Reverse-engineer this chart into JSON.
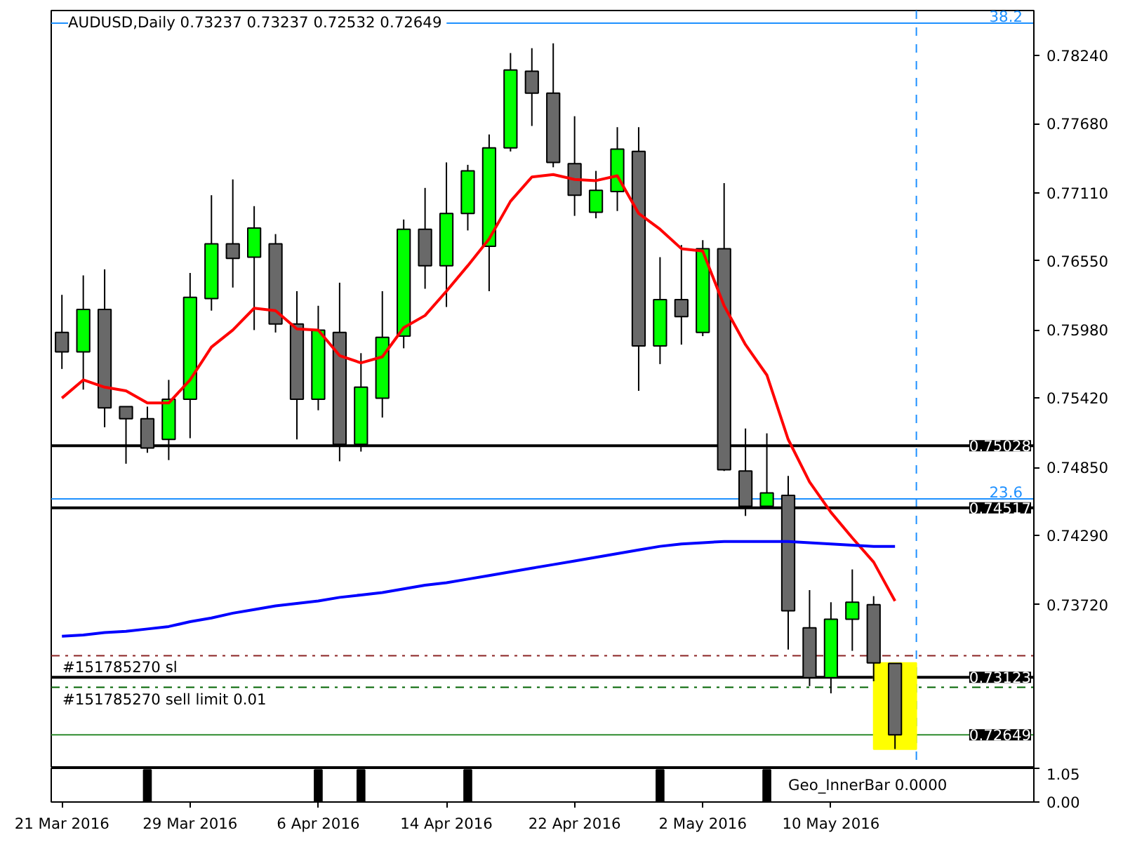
{
  "chart_data": [
    {
      "type": "candlestick",
      "title": "AUDUSD,Daily  0.73237 0.73237 0.72532 0.72649",
      "categories": [
        null,
        null,
        null,
        null,
        null,
        null,
        null,
        null,
        null,
        null,
        null,
        null,
        null,
        null,
        null,
        null,
        null,
        null,
        null,
        null,
        null,
        null,
        null,
        null,
        null,
        null,
        null,
        null,
        null,
        null,
        null,
        null,
        null,
        null,
        null,
        null,
        null,
        null,
        null,
        null,
        null,
        null,
        null,
        null,
        null,
        null
      ],
      "ohlc": [
        [
          0.7596,
          0.7627,
          0.7566,
          0.758
        ],
        [
          0.758,
          0.7643,
          0.7549,
          0.7615
        ],
        [
          0.7615,
          0.7648,
          0.7518,
          0.7534
        ],
        [
          0.7535,
          0.7535,
          0.7488,
          0.7525
        ],
        [
          0.7525,
          0.7535,
          0.7497,
          0.7501
        ],
        [
          0.7508,
          0.7557,
          0.7491,
          0.7541
        ],
        [
          0.7541,
          0.7645,
          0.7509,
          0.7625
        ],
        [
          0.7624,
          0.7709,
          0.7614,
          0.7669
        ],
        [
          0.7669,
          0.7722,
          0.7633,
          0.7657
        ],
        [
          0.7658,
          0.77,
          0.7598,
          0.7682
        ],
        [
          0.7669,
          0.7677,
          0.7596,
          0.7603
        ],
        [
          0.7603,
          0.763,
          0.7508,
          0.7541
        ],
        [
          0.7541,
          0.7618,
          0.7532,
          0.7598
        ],
        [
          0.7596,
          0.7637,
          0.749,
          0.7504
        ],
        [
          0.7504,
          0.7579,
          0.7498,
          0.7551
        ],
        [
          0.7542,
          0.763,
          0.7526,
          0.7592
        ],
        [
          0.7593,
          0.7689,
          0.7583,
          0.7681
        ],
        [
          0.7681,
          0.7715,
          0.7632,
          0.7651
        ],
        [
          0.7651,
          0.7736,
          0.7617,
          0.7694
        ],
        [
          0.7694,
          0.7734,
          0.768,
          0.7729
        ],
        [
          0.7667,
          0.7759,
          0.763,
          0.7748
        ],
        [
          0.7748,
          0.7826,
          0.7745,
          0.7812
        ],
        [
          0.7811,
          0.783,
          0.7766,
          0.7793
        ],
        [
          0.7793,
          0.7834,
          0.7732,
          0.7736
        ],
        [
          0.7735,
          0.7774,
          0.7692,
          0.7709
        ],
        [
          0.7695,
          0.7729,
          0.769,
          0.7713
        ],
        [
          0.7712,
          0.7765,
          0.7696,
          0.7747
        ],
        [
          0.7745,
          0.7765,
          0.7548,
          0.7585
        ],
        [
          0.7585,
          0.7658,
          0.757,
          0.7623
        ],
        [
          0.7623,
          0.7668,
          0.7586,
          0.7609
        ],
        [
          0.7596,
          0.7672,
          0.7593,
          0.7665
        ],
        [
          0.7665,
          0.7719,
          0.7482,
          0.7483
        ],
        [
          0.7482,
          0.7517,
          0.7445,
          0.7453
        ],
        [
          0.7453,
          0.7513,
          0.7451,
          0.7464
        ],
        [
          0.7462,
          0.7478,
          0.7335,
          0.7367
        ],
        [
          0.7353,
          0.7384,
          0.7305,
          0.7312
        ],
        [
          0.7312,
          0.7374,
          0.7299,
          0.736
        ],
        [
          0.736,
          0.7401,
          0.7334,
          0.7374
        ],
        [
          0.7372,
          0.7379,
          0.7309,
          0.7324
        ],
        [
          0.73237,
          0.73237,
          0.72532,
          0.72649
        ],
        null,
        null,
        null,
        null,
        null,
        null
      ],
      "colors": [
        "#696969",
        "#00ff00",
        "#696969",
        "#696969",
        "#696969",
        "#00ff00",
        "#00ff00",
        "#00ff00",
        "#696969",
        "#00ff00",
        "#696969",
        "#696969",
        "#00ff00",
        "#696969",
        "#00ff00",
        "#00ff00",
        "#00ff00",
        "#696969",
        "#00ff00",
        "#00ff00",
        "#00ff00",
        "#00ff00",
        "#696969",
        "#696969",
        "#696969",
        "#00ff00",
        "#00ff00",
        "#696969",
        "#00ff00",
        "#696969",
        "#00ff00",
        "#696969",
        "#696969",
        "#00ff00",
        "#696969",
        "#696969",
        "#00ff00",
        "#00ff00",
        "#696969",
        "#696969",
        null,
        null,
        null,
        null,
        null,
        null
      ],
      "series": [
        {
          "type": "bar",
          "color": "#ffff00",
          "values": [
            null,
            null,
            null,
            null,
            null,
            null,
            null,
            null,
            null,
            null,
            null,
            null,
            null,
            null,
            null,
            null,
            null,
            null,
            null,
            null,
            null,
            null,
            null,
            null,
            null,
            null,
            null,
            null,
            null,
            null,
            null,
            null,
            null,
            null,
            null,
            null,
            null,
            null,
            null,
            0.0071,
            null,
            null,
            null,
            null,
            null,
            null
          ],
          "base": [
            null,
            null,
            null,
            null,
            null,
            null,
            null,
            null,
            null,
            null,
            null,
            null,
            null,
            null,
            null,
            null,
            null,
            null,
            null,
            null,
            null,
            null,
            null,
            null,
            null,
            null,
            null,
            null,
            null,
            null,
            null,
            null,
            null,
            null,
            null,
            null,
            null,
            null,
            null,
            0.7253,
            null,
            null,
            null,
            null,
            null,
            null
          ]
        },
        {
          "type": "line",
          "color": "#ff0000",
          "values": [
            0.7542,
            0.7557,
            0.7551,
            0.7548,
            0.7538,
            0.7538,
            0.7557,
            0.7584,
            0.7598,
            0.7616,
            0.7614,
            0.7599,
            0.7598,
            0.7577,
            0.7571,
            0.7576,
            0.76,
            0.761,
            0.763,
            0.7651,
            0.7673,
            0.7704,
            0.7724,
            0.7726,
            0.7722,
            0.7721,
            0.7725,
            0.7694,
            0.7681,
            0.7665,
            0.7663,
            0.7618,
            0.7586,
            0.7561,
            0.7508,
            0.7473,
            0.7448,
            0.7427,
            0.7407,
            0.7375,
            null,
            null,
            null,
            null,
            null,
            null
          ]
        },
        {
          "type": "line",
          "color": "#0000ff",
          "values": [
            0.7346,
            0.7347,
            0.7349,
            0.735,
            0.7352,
            0.7354,
            0.7358,
            0.7361,
            0.7365,
            0.7368,
            0.7371,
            0.7373,
            0.7375,
            0.7378,
            0.738,
            0.7382,
            0.7385,
            0.7388,
            0.739,
            0.7393,
            0.7396,
            0.7399,
            0.7402,
            0.7405,
            0.7408,
            0.7411,
            0.7414,
            0.7417,
            0.742,
            0.7422,
            0.7423,
            0.7424,
            0.7424,
            0.7424,
            0.7424,
            0.7423,
            0.7422,
            0.7421,
            0.742,
            0.742,
            null,
            null,
            null,
            null,
            null,
            null
          ]
        }
      ],
      "ylim": [
        0.72373,
        0.7861
      ],
      "yticks": [
        {
          "value": 0.7824,
          "label": "0.78240"
        },
        {
          "value": 0.7768,
          "label": "0.77680"
        },
        {
          "value": 0.7711,
          "label": "0.77110"
        },
        {
          "value": 0.7655,
          "label": "0.76550"
        },
        {
          "value": 0.7598,
          "label": "0.75980"
        },
        {
          "value": 0.7542,
          "label": "0.75420"
        },
        {
          "value": 0.7485,
          "label": "0.74850"
        },
        {
          "value": 0.7429,
          "label": "0.74290"
        },
        {
          "value": 0.7372,
          "label": "0.73720"
        }
      ],
      "tick_labels": "y",
      "ref_lines": [
        {
          "axis": "y",
          "value": 0.78506,
          "color": "#1e90ff",
          "line_style": "solid"
        },
        {
          "axis": "y",
          "value": 0.75028,
          "label": "0.75028",
          "color": "#000000",
          "line_style": "solid"
        },
        {
          "axis": "y",
          "value": 0.7459,
          "color": "#1e90ff",
          "line_style": "solid"
        },
        {
          "axis": "y",
          "value": 0.74517,
          "label": "0.74517",
          "color": "#000000",
          "line_style": "solid"
        },
        {
          "axis": "y",
          "value": 0.733,
          "label": "#151785270 sl",
          "color": "#8b2323",
          "line_style": "dashdot"
        },
        {
          "axis": "y",
          "value": 0.73123,
          "label": "0.73123",
          "color": "#000000",
          "line_style": "solid"
        },
        {
          "axis": "y",
          "value": 0.7304,
          "label": "#151785270 sell limit 0.01",
          "color": "#006400",
          "line_style": "dashdot"
        },
        {
          "axis": "y",
          "value": 0.72649,
          "label": "0.72649",
          "color": "#2e8b2e",
          "line_style": "solid"
        }
      ],
      "annotations": [
        {
          "text": "38.2",
          "y": 0.78506
        },
        {
          "text": "23.6",
          "y": 0.7459
        }
      ]
    },
    {
      "type": "bar",
      "title": "Geo_InnerBar  0.0000",
      "categories": [
        "21 Mar 2016",
        null,
        null,
        null,
        null,
        null,
        "29 Mar 2016",
        null,
        null,
        null,
        null,
        null,
        "6 Apr 2016",
        null,
        null,
        null,
        null,
        null,
        "14 Apr 2016",
        null,
        null,
        null,
        null,
        null,
        "22 Apr 2016",
        null,
        null,
        null,
        null,
        null,
        "2 May 2016",
        null,
        null,
        null,
        null,
        null,
        "10 May 2016",
        null,
        null,
        null,
        null,
        null,
        null,
        null,
        null,
        null
      ],
      "values": [
        null,
        null,
        null,
        null,
        1,
        null,
        null,
        null,
        null,
        null,
        null,
        null,
        1,
        null,
        1,
        null,
        null,
        null,
        null,
        1,
        null,
        null,
        null,
        null,
        null,
        null,
        null,
        null,
        1,
        null,
        null,
        null,
        null,
        1,
        null,
        null,
        null,
        null,
        null,
        null,
        null,
        null,
        null,
        null,
        null,
        null
      ],
      "color": "#000000",
      "ylim": [
        0,
        1.05
      ],
      "yticks": [
        {
          "value": 1.05,
          "label": "1.05"
        },
        {
          "value": 0,
          "label": "0.00"
        }
      ]
    }
  ]
}
